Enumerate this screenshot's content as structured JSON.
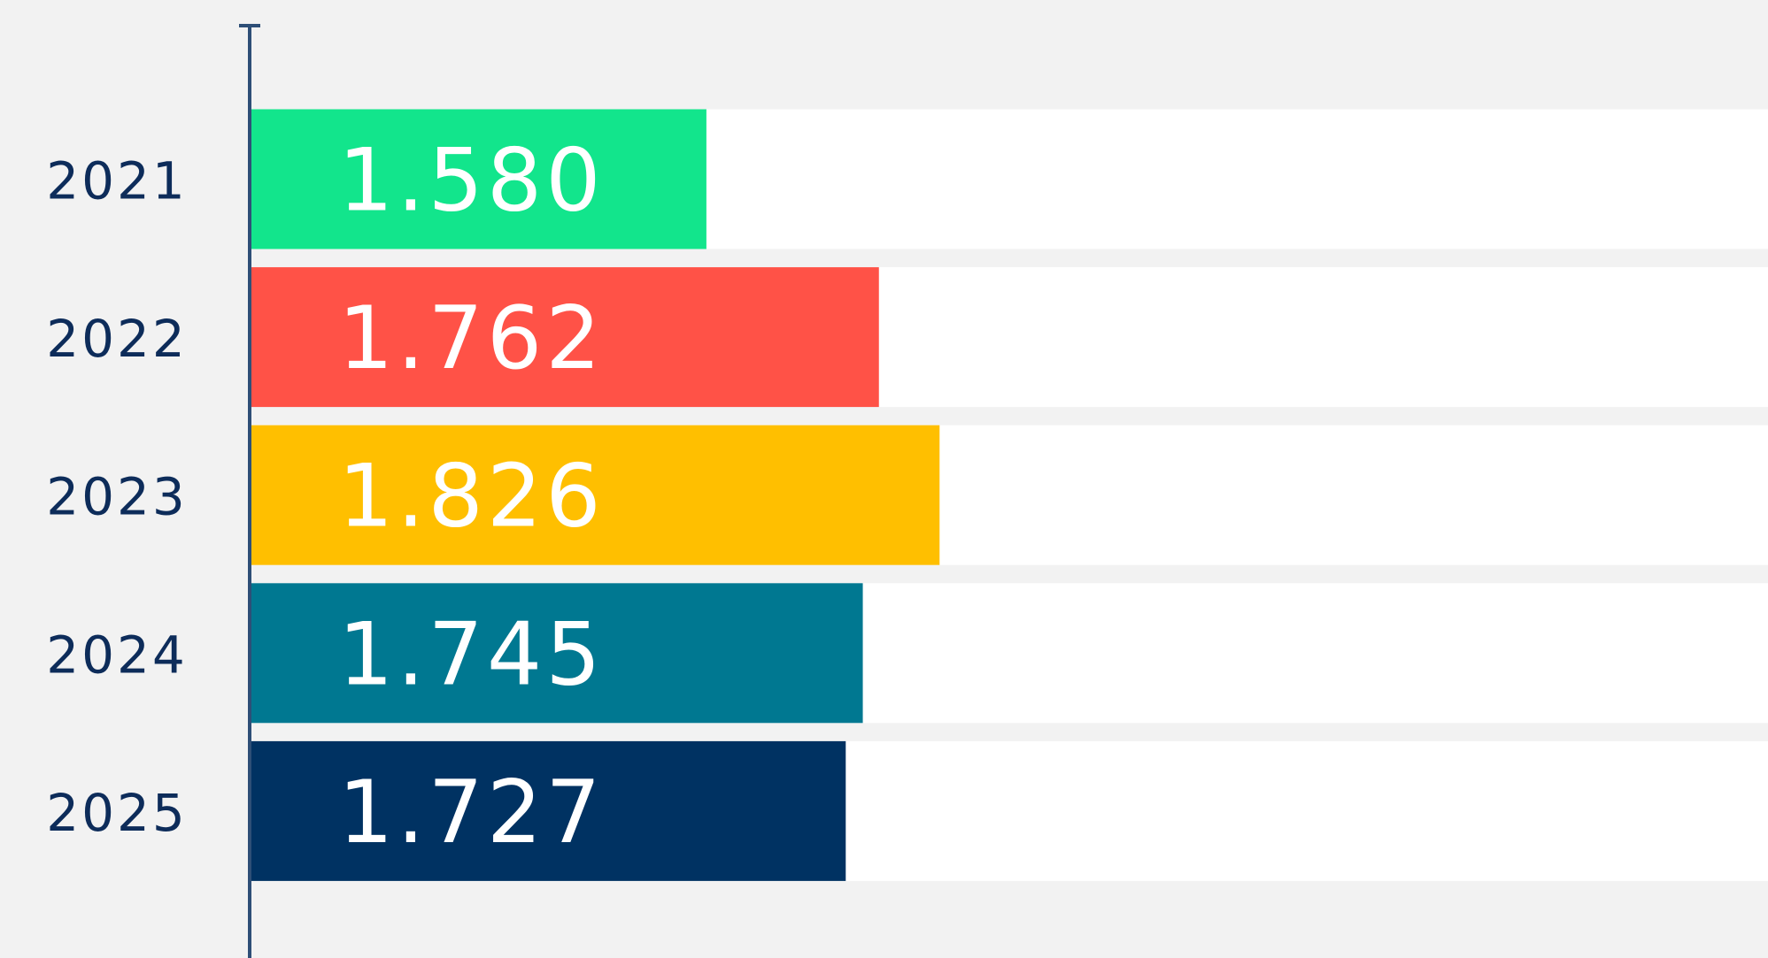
{
  "chart_data": {
    "type": "hbar",
    "categories": [
      "2021",
      "2022",
      "2023",
      "2024",
      "2025"
    ],
    "values": [
      1580,
      1762,
      1826,
      1745,
      1727
    ],
    "value_labels": [
      "1.580",
      "1.762",
      "1.826",
      "1.745",
      "1.727"
    ],
    "colors": [
      "#12e58c",
      "#ff5247",
      "#ffbf00",
      "#007891",
      "#003262"
    ],
    "xlim": [
      1100,
      2700
    ]
  }
}
